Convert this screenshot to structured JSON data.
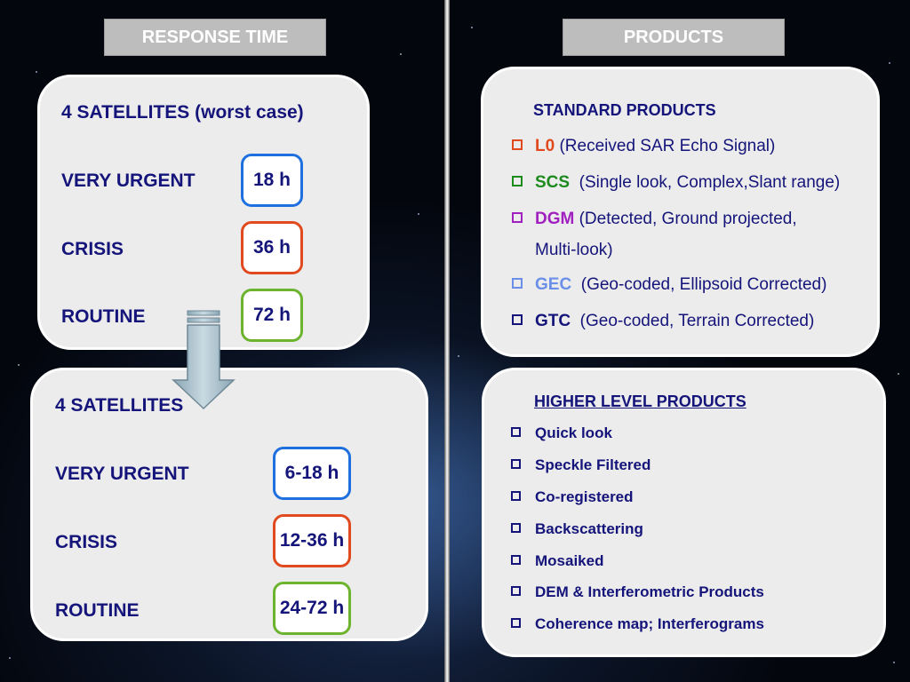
{
  "response_time": {
    "header": "RESPONSE TIME",
    "scenario_1": {
      "title": "4 SATELLITES (worst case)",
      "rows": [
        {
          "label": "VERY URGENT",
          "value": "18 h",
          "color": "#1e6fe0"
        },
        {
          "label": "CRISIS",
          "value": "36 h",
          "color": "#e04a1e"
        },
        {
          "label": "ROUTINE",
          "value": "72 h",
          "color": "#6cb32e"
        }
      ]
    },
    "scenario_2": {
      "title": "4 SATELLITES",
      "rows": [
        {
          "label": "VERY URGENT",
          "value": "6-18 h",
          "color": "#1e6fe0"
        },
        {
          "label": "CRISIS",
          "value": "12-36 h",
          "color": "#e04a1e"
        },
        {
          "label": "ROUTINE",
          "value": "24-72 h",
          "color": "#6cb32e"
        }
      ]
    }
  },
  "products": {
    "header": "PRODUCTS",
    "standard": {
      "title": "STANDARD PRODUCTS",
      "items": [
        {
          "code": "L0",
          "desc": "(Received SAR Echo Signal)",
          "color": "#e04a1e"
        },
        {
          "code": "SCS",
          "desc": "(Single look, Complex,Slant range)",
          "color": "#1d8a1d"
        },
        {
          "code": "DGM",
          "desc": "(Detected, Ground projected,",
          "desc2": "Multi-look)",
          "color": "#a020c0"
        },
        {
          "code": "GEC",
          "desc": "(Geo-coded, Ellipsoid Corrected)",
          "color": "#6b8fe8"
        },
        {
          "code": "GTC",
          "desc": "(Geo-coded, Terrain Corrected)",
          "color": "#14147a"
        }
      ]
    },
    "higher": {
      "title": "HIGHER LEVEL PRODUCTS",
      "items": [
        "Quick look",
        "Speckle Filtered",
        "Co-registered",
        "Backscattering",
        "Mosaiked",
        "DEM & Interferometric Products",
        "Coherence map; Interferograms"
      ]
    }
  }
}
